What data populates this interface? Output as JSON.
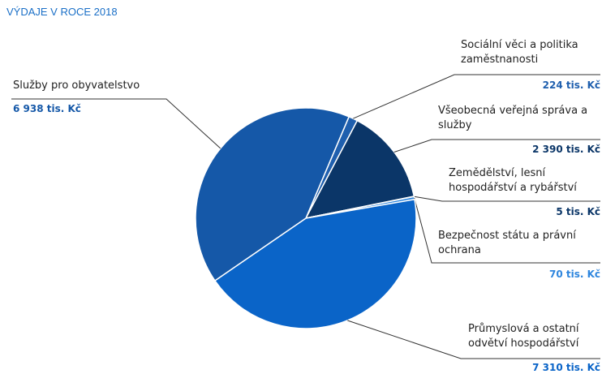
{
  "chart_data": {
    "type": "pie",
    "title": "VÝDAJE V ROCE 2018",
    "slices": [
      {
        "label": "Sociální věci a politika zaměstnanosti",
        "value": 224,
        "value_label": "224 tis. Kč",
        "color": "#1f5fae"
      },
      {
        "label": "Všeobecná veřejná správa a služby",
        "value": 2390,
        "value_label": "2 390 tis. Kč",
        "color": "#0b3668"
      },
      {
        "label": "Zemědělství, lesní hospodářství a rybářství",
        "value": 5,
        "value_label": "5 tis. Kč",
        "color": "#0b3668"
      },
      {
        "label": "Bezpečnost státu a právní ochrana",
        "value": 70,
        "value_label": "70 tis. Kč",
        "color": "#2e86de"
      },
      {
        "label": "Průmyslová a ostatní odvětví hospodářství",
        "value": 7310,
        "value_label": "7 310 tis. Kč",
        "color": "#0a64c8"
      },
      {
        "label": "Služby pro obyvatelstvo",
        "value": 6938,
        "value_label": "6 938 tis. Kč",
        "color": "#1558a8"
      }
    ]
  }
}
